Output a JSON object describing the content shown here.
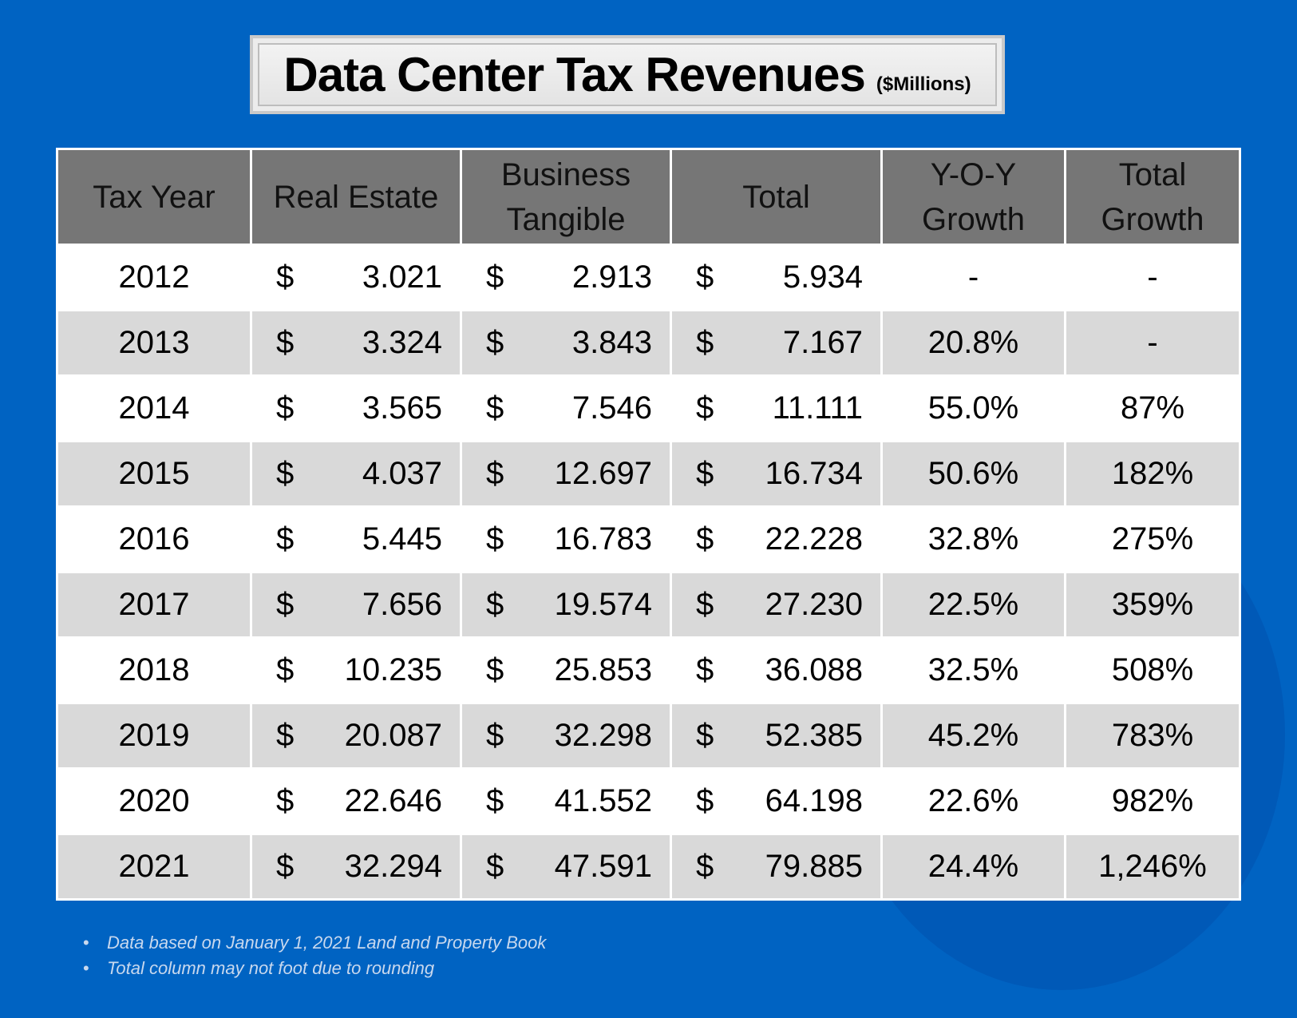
{
  "title": "Data Center Tax Revenues",
  "unit": "($Millions)",
  "headers": [
    "Tax Year",
    "Real Estate",
    "Business Tangible",
    "Total",
    "Y-O-Y Growth",
    "Total Growth"
  ],
  "currency_symbol": "$",
  "rows": [
    {
      "year": "2012",
      "real_estate": "3.021",
      "business": "2.913",
      "total": "5.934",
      "yoy": "-",
      "total_growth": "-"
    },
    {
      "year": "2013",
      "real_estate": "3.324",
      "business": "3.843",
      "total": "7.167",
      "yoy": "20.8%",
      "total_growth": "-"
    },
    {
      "year": "2014",
      "real_estate": "3.565",
      "business": "7.546",
      "total": "11.111",
      "yoy": "55.0%",
      "total_growth": "87%"
    },
    {
      "year": "2015",
      "real_estate": "4.037",
      "business": "12.697",
      "total": "16.734",
      "yoy": "50.6%",
      "total_growth": "182%"
    },
    {
      "year": "2016",
      "real_estate": "5.445",
      "business": "16.783",
      "total": "22.228",
      "yoy": "32.8%",
      "total_growth": "275%"
    },
    {
      "year": "2017",
      "real_estate": "7.656",
      "business": "19.574",
      "total": "27.230",
      "yoy": "22.5%",
      "total_growth": "359%"
    },
    {
      "year": "2018",
      "real_estate": "10.235",
      "business": "25.853",
      "total": "36.088",
      "yoy": "32.5%",
      "total_growth": "508%"
    },
    {
      "year": "2019",
      "real_estate": "20.087",
      "business": "32.298",
      "total": "52.385",
      "yoy": "45.2%",
      "total_growth": "783%"
    },
    {
      "year": "2020",
      "real_estate": "22.646",
      "business": "41.552",
      "total": "64.198",
      "yoy": "22.6%",
      "total_growth": "982%"
    },
    {
      "year": "2021",
      "real_estate": "32.294",
      "business": "47.591",
      "total": "79.885",
      "yoy": "24.4%",
      "total_growth": "1,246%"
    }
  ],
  "footnotes": [
    "Data based on January 1, 2021 Land and Property Book",
    "Total column may not foot due to rounding"
  ],
  "colors": {
    "background": "#0063c2",
    "header": "#767676",
    "alt_row": "#d9d9d9"
  }
}
